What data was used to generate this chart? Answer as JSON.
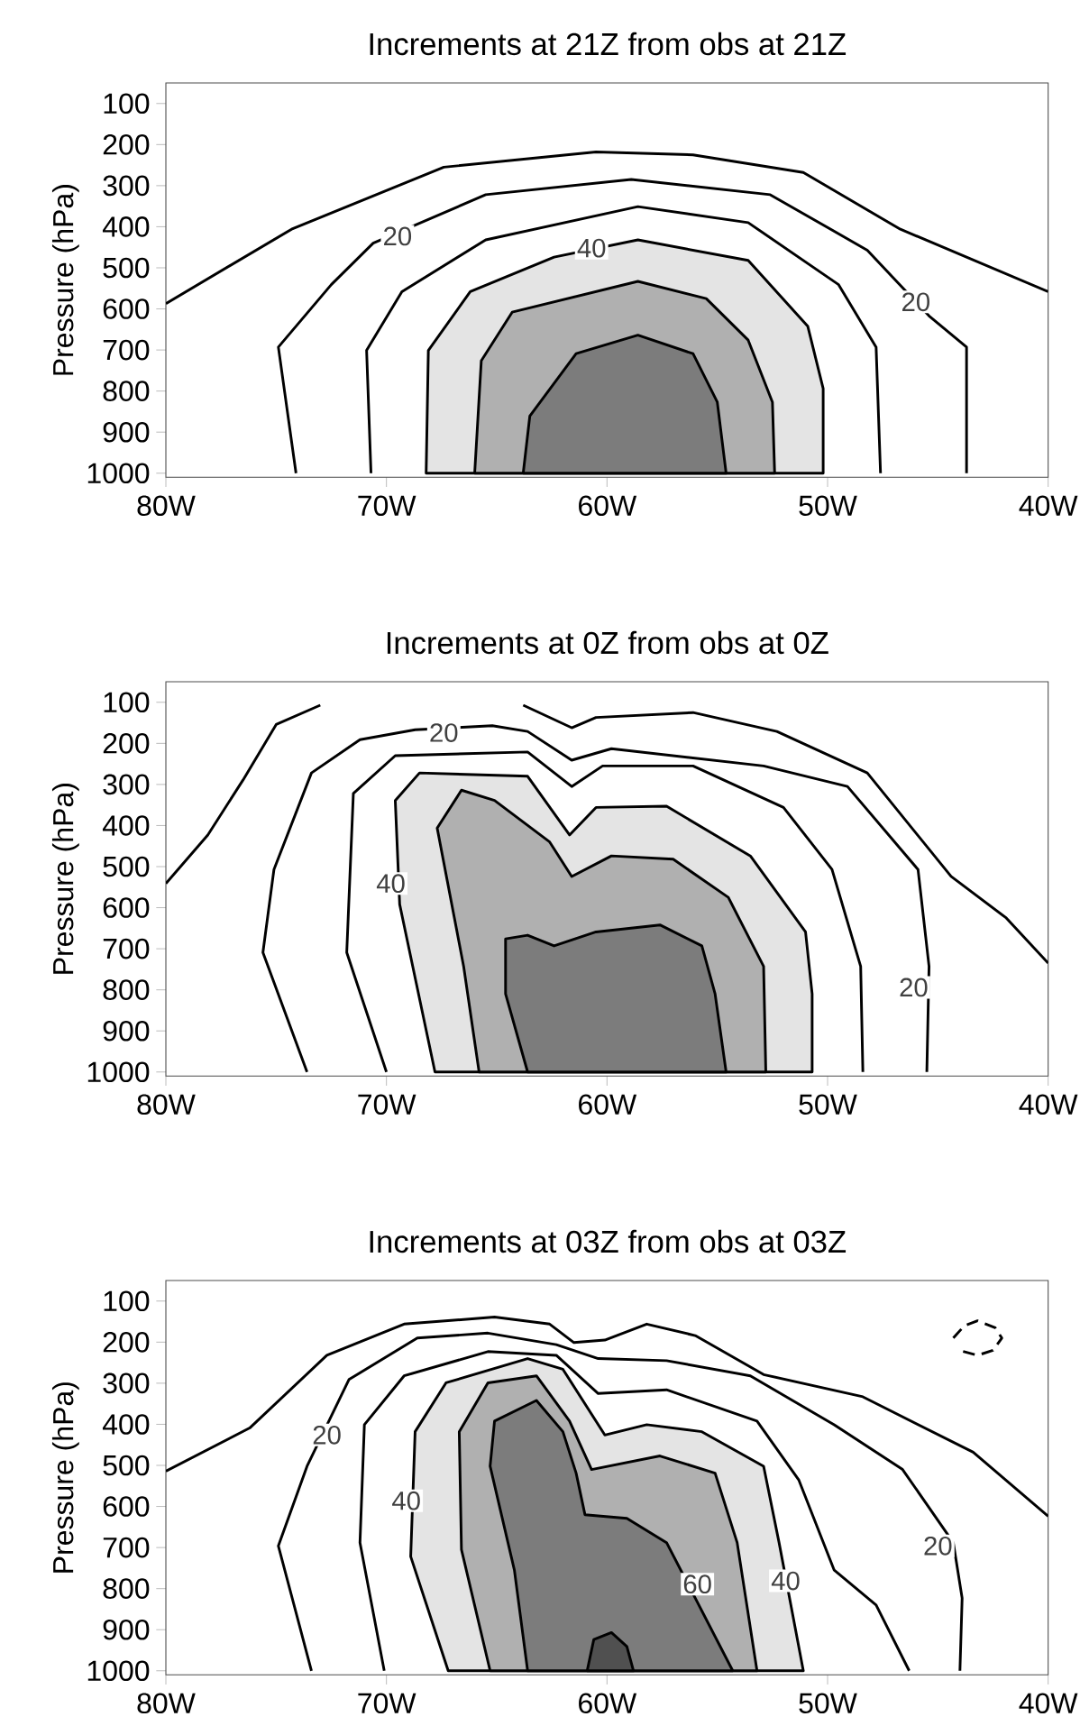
{
  "chart_data": [
    {
      "type": "line",
      "title": "Increments at 21Z from obs at 21Z",
      "ylabel": "Pressure (hPa)",
      "xlim": [
        -80,
        -40
      ],
      "xticks": [
        {
          "value": -80,
          "label": "80W"
        },
        {
          "value": -70,
          "label": "70W"
        },
        {
          "value": -60,
          "label": "60W"
        },
        {
          "value": -50,
          "label": "50W"
        },
        {
          "value": -40,
          "label": "40W"
        }
      ],
      "ylim": [
        1010,
        50
      ],
      "yticks": [
        100,
        200,
        300,
        400,
        500,
        600,
        700,
        800,
        900,
        1000
      ],
      "series": [
        {
          "type": "line",
          "color": "#000000",
          "x": [
            -80,
            -74.3,
            -67.4,
            -60.5,
            -56.1,
            -51.1,
            -46.7,
            -40
          ],
          "values": [
            587,
            406,
            255,
            218,
            225,
            268,
            406,
            558
          ]
        },
        {
          "type": "line",
          "color": "#000000",
          "x": [
            -74.1,
            -74.9,
            -72.5,
            -70.6,
            -65.5,
            -58.9,
            -52.6,
            -48.2,
            -45.4,
            -43.7,
            -43.7
          ],
          "values": [
            1000,
            693,
            541,
            440,
            322,
            285,
            322,
            457,
            617,
            693,
            1000
          ]
        },
        {
          "type": "line",
          "color": "#000000",
          "x": [
            -70.7,
            -70.9,
            -69.3,
            -65.5,
            -58.6,
            -53.6,
            -49.5,
            -47.8,
            -47.6
          ],
          "values": [
            1000,
            701,
            558,
            432,
            351,
            390,
            541,
            693,
            1000
          ]
        },
        {
          "type": "area",
          "color": "#e4e4e4",
          "x": [
            -68.2,
            -68.1,
            -66.2,
            -62.4,
            -58.6,
            -53.6,
            -50.9,
            -50.2,
            -50.2
          ],
          "values": [
            1000,
            701,
            558,
            474,
            432,
            482,
            642,
            794,
            1000
          ]
        },
        {
          "type": "area",
          "color": "#b0b0b0",
          "x": [
            -66,
            -65.7,
            -64.3,
            -58.6,
            -55.5,
            -53.6,
            -52.5,
            -52.4
          ],
          "values": [
            1000,
            726,
            608,
            533,
            575,
            676,
            827,
            1000
          ]
        },
        {
          "type": "area",
          "color": "#7c7c7c",
          "x": [
            -63.8,
            -63.5,
            -61.4,
            -58.6,
            -56.1,
            -55,
            -54.6
          ],
          "values": [
            1000,
            861,
            709,
            664,
            709,
            827,
            1000
          ]
        }
      ],
      "annotations": [
        {
          "text": "20",
          "x": -69.5,
          "y": 423
        },
        {
          "text": "40",
          "x": -60.7,
          "y": 452
        },
        {
          "text": "20",
          "x": -46,
          "y": 583
        }
      ]
    },
    {
      "type": "line",
      "title": "Increments at 0Z from obs at 0Z",
      "ylabel": "Pressure (hPa)",
      "xlim": [
        -80,
        -40
      ],
      "xticks": [
        {
          "value": -80,
          "label": "80W"
        },
        {
          "value": -70,
          "label": "70W"
        },
        {
          "value": -60,
          "label": "60W"
        },
        {
          "value": -50,
          "label": "50W"
        },
        {
          "value": -40,
          "label": "40W"
        }
      ],
      "ylim": [
        1010,
        50
      ],
      "yticks": [
        100,
        200,
        300,
        400,
        500,
        600,
        700,
        800,
        900,
        1000
      ],
      "series": [
        {
          "type": "line",
          "color": "#000000",
          "x": [
            -80,
            -78.1,
            -76.5,
            -75,
            -73
          ],
          "values": [
            541,
            423,
            289,
            154,
            107
          ]
        },
        {
          "type": "line",
          "color": "#000000",
          "x": [
            -63.8,
            -61.6,
            -60.5,
            -56.1,
            -52.3,
            -48.2,
            -44.4,
            -41.9,
            -40
          ],
          "values": [
            107,
            162,
            137,
            125,
            171,
            272,
            524,
            625,
            735
          ]
        },
        {
          "type": "line",
          "color": "#000000",
          "x": [
            -73.6,
            -75.6,
            -75.1,
            -73.4,
            -71.2,
            -68.7,
            -65.2,
            -63.6,
            -61.6,
            -59.8,
            -52.9,
            -49.1,
            -45.9,
            -45.4,
            -45.5
          ],
          "values": [
            1000,
            709,
            507,
            272,
            191,
            167,
            157,
            171,
            241,
            213,
            255,
            305,
            507,
            743,
            1000
          ]
        },
        {
          "type": "line",
          "color": "#000000",
          "x": [
            -70,
            -71.8,
            -71.5,
            -69.6,
            -63.6,
            -61.6,
            -60.2,
            -56.1,
            -52,
            -49.8,
            -48.5,
            -48.4
          ],
          "values": [
            1000,
            709,
            322,
            230,
            221,
            305,
            255,
            255,
            356,
            507,
            743,
            1000
          ]
        },
        {
          "type": "area",
          "color": "#e4e4e4",
          "x": [
            -67.8,
            -69.4,
            -69.6,
            -68.5,
            -63.6,
            -61.7,
            -60.5,
            -57.3,
            -53.5,
            -51,
            -50.7,
            -50.7
          ],
          "values": [
            1000,
            592,
            339,
            272,
            280,
            423,
            356,
            353,
            474,
            659,
            810,
            1000
          ]
        },
        {
          "type": "area",
          "color": "#b0b0b0",
          "x": [
            -65.8,
            -66.5,
            -67.7,
            -66.6,
            -65.1,
            -62.6,
            -61.6,
            -59.8,
            -57,
            -54.5,
            -52.9,
            -52.8
          ],
          "values": [
            1000,
            743,
            406,
            314,
            339,
            440,
            524,
            474,
            482,
            575,
            743,
            1000
          ]
        },
        {
          "type": "area",
          "color": "#7c7c7c",
          "x": [
            -63.6,
            -64.6,
            -64.6,
            -63.6,
            -62.4,
            -60.5,
            -57.6,
            -55.7,
            -55.1,
            -54.6
          ],
          "values": [
            1000,
            810,
            676,
            667,
            693,
            659,
            642,
            693,
            810,
            1000
          ]
        }
      ],
      "annotations": [
        {
          "text": "20",
          "x": -67.4,
          "y": 174
        },
        {
          "text": "40",
          "x": -69.8,
          "y": 541
        },
        {
          "text": "20",
          "x": -46.1,
          "y": 794
        }
      ]
    },
    {
      "type": "line",
      "title": "Increments at 03Z from obs at 03Z",
      "ylabel": "Pressure (hPa)",
      "xlim": [
        -80,
        -40
      ],
      "xticks": [
        {
          "value": -80,
          "label": "80W"
        },
        {
          "value": -70,
          "label": "70W"
        },
        {
          "value": -60,
          "label": "60W"
        },
        {
          "value": -50,
          "label": "50W"
        },
        {
          "value": -40,
          "label": "40W"
        }
      ],
      "ylim": [
        1010,
        50
      ],
      "yticks": [
        100,
        200,
        300,
        400,
        500,
        600,
        700,
        800,
        900,
        1000
      ],
      "series": [
        {
          "type": "line",
          "color": "#000000",
          "x": [
            -80,
            -76.2,
            -72.7,
            -69.2,
            -65.1,
            -62.6,
            -61.5,
            -60.1,
            -58.2,
            -56,
            -52.9,
            -48.4,
            -43.4,
            -40
          ],
          "values": [
            514,
            409,
            232,
            156,
            139,
            156,
            201,
            195,
            156,
            184,
            279,
            333,
            468,
            624
          ]
        },
        {
          "type": "line",
          "color": "#000000",
          "x": [
            -73.4,
            -74.9,
            -73.6,
            -71.7,
            -68.6,
            -65.4,
            -62.3,
            -60.4,
            -57.3,
            -53.5,
            -49.7,
            -46.6,
            -44.3,
            -43.9,
            -44
          ],
          "values": [
            1000,
            696,
            502,
            291,
            190,
            178,
            206,
            240,
            245,
            282,
            401,
            510,
            688,
            823,
            1000
          ]
        },
        {
          "type": "line",
          "color": "#000000",
          "x": [
            -70.1,
            -71.2,
            -71,
            -69.2,
            -65.4,
            -62.3,
            -60.4,
            -57.3,
            -53.2,
            -51.3,
            -49.7,
            -47.8,
            -46.3
          ],
          "values": [
            1000,
            688,
            401,
            282,
            223,
            232,
            325,
            316,
            392,
            536,
            755,
            840,
            1000
          ]
        },
        {
          "type": "area",
          "color": "#e4e4e4",
          "x": [
            -67.2,
            -68.9,
            -68.7,
            -67.3,
            -63.6,
            -62,
            -60.1,
            -58.2,
            -55.7,
            -52.9,
            -52.2,
            -51.1
          ],
          "values": [
            1000,
            722,
            418,
            299,
            240,
            266,
            426,
            401,
            418,
            502,
            688,
            1000
          ]
        },
        {
          "type": "area",
          "color": "#b0b0b0",
          "x": [
            -65.3,
            -66.6,
            -66.7,
            -65.4,
            -63.2,
            -61.7,
            -60.7,
            -57.6,
            -55.1,
            -54.1,
            -53.2
          ],
          "values": [
            1000,
            705,
            418,
            299,
            282,
            392,
            510,
            477,
            519,
            688,
            1000
          ]
        },
        {
          "type": "area",
          "color": "#7c7c7c",
          "x": [
            -63.6,
            -64.2,
            -65.3,
            -65.1,
            -63.2,
            -62,
            -61.4,
            -61,
            -59.1,
            -57.3,
            -56,
            -54.3
          ],
          "values": [
            1000,
            755,
            502,
            392,
            342,
            418,
            519,
            620,
            629,
            688,
            823,
            1000
          ]
        },
        {
          "type": "area",
          "color": "#505050",
          "x": [
            -60.9,
            -60.6,
            -59.8,
            -59.1,
            -58.8
          ],
          "values": [
            1000,
            924,
            907,
            941,
            1000
          ]
        },
        {
          "type": "line",
          "color": "#000000",
          "line_style": "dashed",
          "x": [
            -44.3,
            -43.8,
            -43.2,
            -42.4,
            -42.1,
            -42.5,
            -43.2,
            -43.9
          ],
          "values": [
            190,
            160,
            148,
            165,
            190,
            220,
            232,
            222
          ]
        }
      ],
      "annotations": [
        {
          "text": "20",
          "x": -72.7,
          "y": 426
        },
        {
          "text": "40",
          "x": -69.1,
          "y": 586
        },
        {
          "text": "60",
          "x": -55.9,
          "y": 789
        },
        {
          "text": "40",
          "x": -51.9,
          "y": 781
        },
        {
          "text": "20",
          "x": -45,
          "y": 696
        }
      ]
    }
  ]
}
